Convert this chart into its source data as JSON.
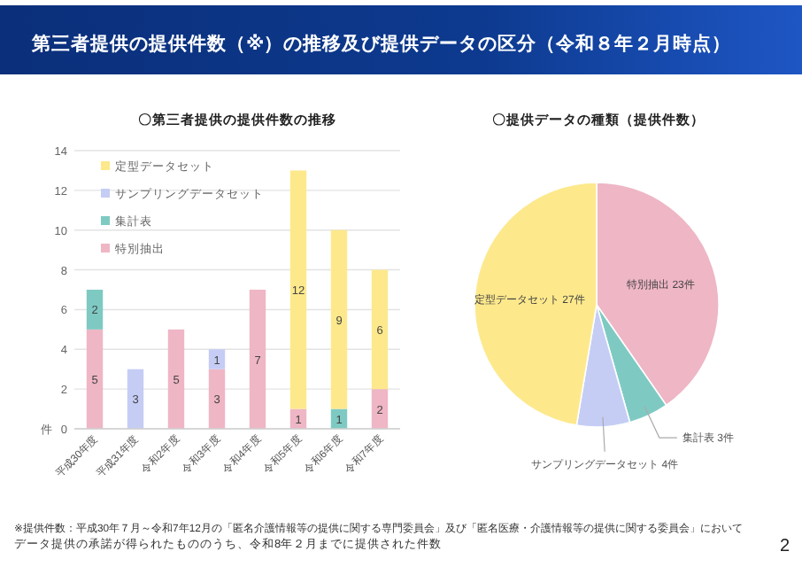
{
  "chart_data": [
    {
      "type": "bar",
      "title": "〇第三者提供の提供件数の推移",
      "ylabel": "件",
      "stacked": true,
      "data_labels": true,
      "grid": "y",
      "legend": "top left",
      "categories": [
        "平成30年度",
        "平成31年度",
        "令和2年度",
        "令和3年度",
        "令和4年度",
        "令和5年度",
        "令和6年度",
        "令和7年度"
      ],
      "ylim": [
        0,
        14
      ],
      "yticks": [
        0,
        2,
        4,
        6,
        8,
        10,
        12,
        14
      ],
      "series": [
        {
          "name": "特別抽出",
          "color": "#efb6c5",
          "values": [
            5,
            null,
            5,
            3,
            7,
            1,
            null,
            2
          ]
        },
        {
          "name": "集計表",
          "color": "#7ecac3",
          "values": [
            2,
            null,
            null,
            null,
            null,
            null,
            1,
            null
          ]
        },
        {
          "name": "サンプリングデータセット",
          "color": "#c5cdf5",
          "values": [
            null,
            3,
            null,
            1,
            null,
            null,
            null,
            null
          ]
        },
        {
          "name": "定型データセット",
          "color": "#fde98c",
          "values": [
            null,
            null,
            null,
            null,
            null,
            12,
            9,
            6
          ]
        }
      ],
      "annotations": [
        "第三者提供の提供件数（※）の推移及び提供データの区分（令和８年２月時点）",
        "※提供件数：平成30年７月～令和7年12月の「匿名介護情報等の提供に関する専門委員会」及び「匿名医療・介護情報等の提供に関する委員会」において",
        "データ提供の承諾が得られたもののうち、令和8年２月までに提供された件数",
        "2"
      ]
    },
    {
      "type": "pie",
      "title": "〇提供データの種類（提供件数）",
      "categories": [
        "特別抽出",
        "集計表",
        "サンプリングデータセット",
        "定型データセット"
      ],
      "values": [
        23,
        3,
        4,
        27
      ],
      "colors": [
        "#efb6c5",
        "#7ecac3",
        "#c5cdf5",
        "#fde98c"
      ],
      "value_labels": [
        "23件",
        "3件",
        "4件",
        "27件"
      ]
    }
  ]
}
